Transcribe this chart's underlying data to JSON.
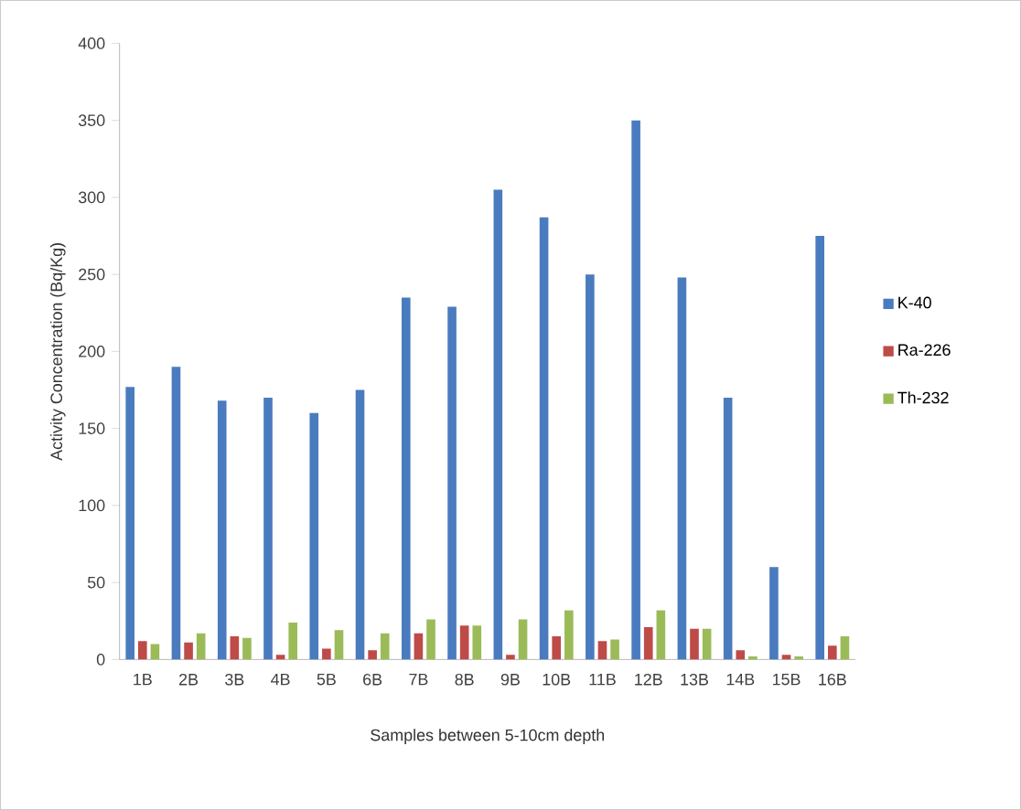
{
  "chart_data": {
    "type": "bar",
    "xlabel": "Samples between 5-10cm depth",
    "ylabel": "Activity Concentration (Bq/Kg)",
    "categories": [
      "1B",
      "2B",
      "3B",
      "4B",
      "5B",
      "6B",
      "7B",
      "8B",
      "9B",
      "10B",
      "11B",
      "12B",
      "13B",
      "14B",
      "15B",
      "16B"
    ],
    "series": [
      {
        "name": "K-40",
        "color": "#4a7bbf",
        "values": [
          177,
          190,
          168,
          170,
          160,
          175,
          235,
          229,
          305,
          287,
          250,
          350,
          248,
          170,
          60,
          275
        ]
      },
      {
        "name": "Ra-226",
        "color": "#be4b48",
        "values": [
          12,
          11,
          15,
          3,
          7,
          6,
          17,
          22,
          3,
          15,
          12,
          21,
          20,
          6,
          3,
          9
        ]
      },
      {
        "name": "Th-232",
        "color": "#9bbb59",
        "values": [
          10,
          17,
          14,
          24,
          19,
          17,
          26,
          22,
          26,
          32,
          13,
          32,
          20,
          2,
          2,
          15
        ]
      }
    ],
    "ylim": [
      0,
      400
    ],
    "yticks": [
      0,
      50,
      100,
      150,
      200,
      250,
      300,
      350,
      400
    ],
    "grid": false,
    "legend": "right"
  }
}
